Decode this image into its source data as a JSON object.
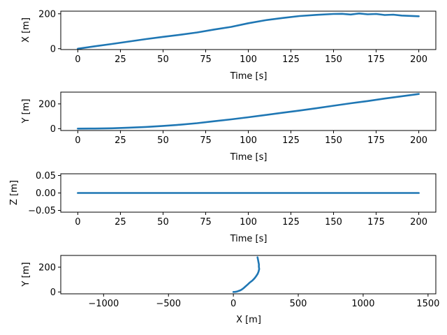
{
  "colors": {
    "series": "#1f77b4",
    "axes": "#000000",
    "background": "#ffffff"
  },
  "chart_data": [
    {
      "type": "line",
      "title": "",
      "xlabel": "Time [s]",
      "ylabel": "X [m]",
      "xlim": [
        -10,
        210
      ],
      "ylim": [
        -5,
        215
      ],
      "xticks": [
        0,
        25,
        50,
        75,
        100,
        125,
        150,
        175,
        200
      ],
      "xtick_labels": [
        "0",
        "25",
        "50",
        "75",
        "100",
        "125",
        "150",
        "175",
        "200"
      ],
      "yticks": [
        0,
        200
      ],
      "ytick_labels": [
        "0",
        "200"
      ],
      "grid": false,
      "marker": "small-dot",
      "x": [
        0,
        10,
        20,
        30,
        40,
        50,
        60,
        70,
        80,
        90,
        100,
        110,
        120,
        130,
        140,
        150,
        155,
        160,
        165,
        170,
        175,
        180,
        185,
        190,
        195,
        200
      ],
      "y": [
        0,
        14,
        27,
        41,
        55,
        68,
        80,
        93,
        110,
        125,
        146,
        163,
        176,
        187,
        194,
        199,
        200,
        196,
        202,
        197,
        199,
        193,
        195,
        190,
        188,
        186
      ]
    },
    {
      "type": "line",
      "title": "",
      "xlabel": "Time [s]",
      "ylabel": "Y [m]",
      "xlim": [
        -10,
        210
      ],
      "ylim": [
        -15,
        295
      ],
      "xticks": [
        0,
        25,
        50,
        75,
        100,
        125,
        150,
        175,
        200
      ],
      "xtick_labels": [
        "0",
        "25",
        "50",
        "75",
        "100",
        "125",
        "150",
        "175",
        "200"
      ],
      "yticks": [
        0,
        200
      ],
      "ytick_labels": [
        "0",
        "200"
      ],
      "grid": false,
      "marker": "small-dot",
      "x": [
        0,
        10,
        20,
        30,
        40,
        50,
        60,
        70,
        80,
        90,
        100,
        110,
        120,
        130,
        140,
        150,
        160,
        170,
        180,
        190,
        200
      ],
      "y": [
        0,
        1,
        3,
        8,
        14,
        22,
        32,
        44,
        60,
        75,
        92,
        110,
        128,
        146,
        165,
        185,
        205,
        223,
        243,
        262,
        280
      ]
    },
    {
      "type": "line",
      "title": "",
      "xlabel": "Time [s]",
      "ylabel": "Z [m]",
      "xlim": [
        -10,
        210
      ],
      "ylim": [
        -0.055,
        0.055
      ],
      "xticks": [
        0,
        25,
        50,
        75,
        100,
        125,
        150,
        175,
        200
      ],
      "xtick_labels": [
        "0",
        "25",
        "50",
        "75",
        "100",
        "125",
        "150",
        "175",
        "200"
      ],
      "yticks": [
        -0.05,
        0.0,
        0.05
      ],
      "ytick_labels": [
        "−0.05",
        "0.00",
        "0.05"
      ],
      "grid": false,
      "marker": "small-dot",
      "x": [
        0,
        200
      ],
      "y": [
        0,
        0
      ]
    },
    {
      "type": "line",
      "title": "",
      "xlabel": "X [m]",
      "ylabel": "Y [m]",
      "xlim": [
        -1330,
        1560
      ],
      "ylim": [
        -15,
        295
      ],
      "xticks": [
        -1000,
        -500,
        0,
        500,
        1000,
        1500
      ],
      "xtick_labels": [
        "−1000",
        "−500",
        "0",
        "500",
        "1000",
        "1500"
      ],
      "yticks": [
        0,
        200
      ],
      "ytick_labels": [
        "0",
        "200"
      ],
      "grid": false,
      "marker": "small-dot",
      "x": [
        0,
        14,
        27,
        41,
        55,
        68,
        80,
        93,
        110,
        125,
        146,
        163,
        176,
        187,
        194,
        199,
        196,
        197,
        193,
        190,
        186
      ],
      "y": [
        0,
        1,
        3,
        8,
        14,
        22,
        32,
        44,
        60,
        75,
        92,
        110,
        128,
        146,
        165,
        185,
        205,
        223,
        243,
        262,
        280
      ]
    }
  ]
}
